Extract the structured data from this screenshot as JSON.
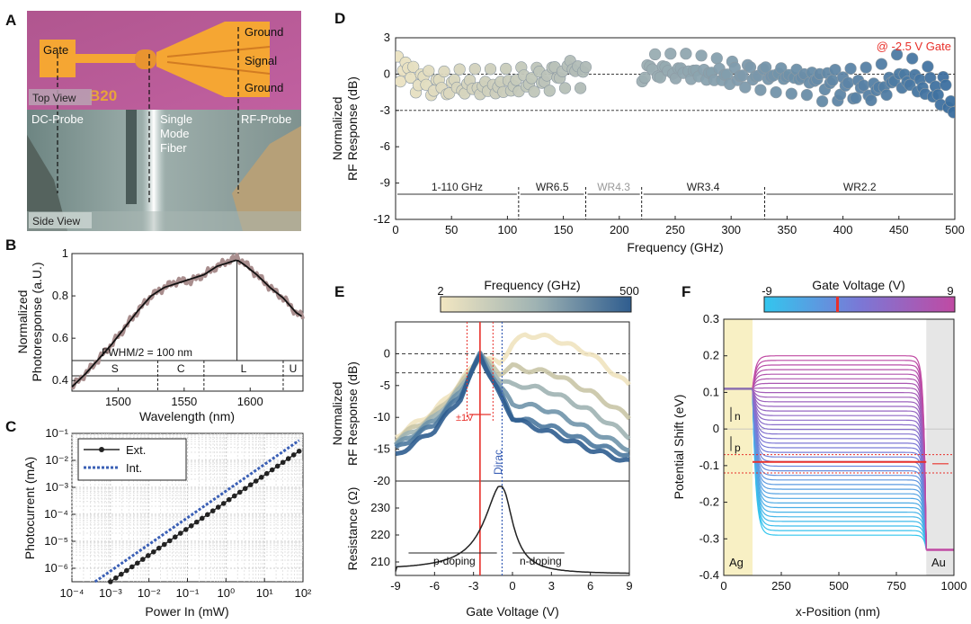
{
  "figure": {
    "panel_labels": [
      "A",
      "B",
      "C",
      "D",
      "E",
      "F"
    ],
    "photo": {
      "top_view_label": "Top View",
      "side_view_label": "Side View",
      "gate_label": "Gate",
      "ground_top_label": "Ground",
      "signal_label": "Signal",
      "ground_bottom_label": "Ground",
      "dc_probe_label": "DC-Probe",
      "fiber_label_1": "Single",
      "fiber_label_2": "Mode",
      "fiber_label_3": "Fiber",
      "rf_probe_label": "RF-Probe",
      "chip_marking": "B20"
    }
  },
  "chart_data": [
    {
      "id": "B",
      "type": "line",
      "xlabel": "Wavelength (nm)",
      "ylabel_1": "Normalized",
      "ylabel_2": "Photoresponse (a.U.)",
      "xlim": [
        1465,
        1640
      ],
      "ylim": [
        0.35,
        1.0
      ],
      "xticks": [
        1500,
        1550,
        1600
      ],
      "yticks": [
        0.4,
        0.6,
        0.8,
        1
      ],
      "series": [
        {
          "name": "measured",
          "color": "#a98e8e",
          "x": [
            1465,
            1475,
            1485,
            1495,
            1505,
            1515,
            1525,
            1535,
            1545,
            1555,
            1565,
            1575,
            1585,
            1590,
            1595,
            1605,
            1615,
            1625,
            1635,
            1640
          ],
          "y": [
            0.37,
            0.43,
            0.5,
            0.57,
            0.65,
            0.73,
            0.8,
            0.84,
            0.87,
            0.87,
            0.9,
            0.94,
            0.97,
            0.98,
            0.96,
            0.9,
            0.84,
            0.79,
            0.72,
            0.7
          ]
        },
        {
          "name": "fit",
          "color": "#111111",
          "x": [
            1465,
            1475,
            1485,
            1495,
            1505,
            1515,
            1525,
            1535,
            1545,
            1555,
            1565,
            1575,
            1585,
            1590,
            1595,
            1605,
            1615,
            1625,
            1635,
            1640
          ],
          "y": [
            0.37,
            0.43,
            0.5,
            0.57,
            0.65,
            0.73,
            0.8,
            0.84,
            0.86,
            0.88,
            0.9,
            0.94,
            0.96,
            0.97,
            0.95,
            0.9,
            0.84,
            0.79,
            0.72,
            0.7
          ]
        }
      ],
      "annotation": "FWHM/2 = 100 nm",
      "peak_wavelength": 1590,
      "bands": [
        {
          "name": "S",
          "start": 1465,
          "end": 1530
        },
        {
          "name": "C",
          "start": 1530,
          "end": 1565
        },
        {
          "name": "L",
          "start": 1565,
          "end": 1625
        },
        {
          "name": "U",
          "start": 1625,
          "end": 1640
        }
      ]
    },
    {
      "id": "C",
      "type": "line",
      "xlabel": "Power In (mW)",
      "ylabel": "Photocurrent (mA)",
      "xscale": "log",
      "yscale": "log",
      "xlim_exp": [
        -4,
        2
      ],
      "ylim_exp": [
        -6.5,
        -1
      ],
      "xtick_labels": [
        "10⁻⁴",
        "10⁻³",
        "10⁻²",
        "10⁻¹",
        "10⁰",
        "10¹",
        "10²"
      ],
      "ytick_labels": [
        "10⁻⁶",
        "10⁻⁵",
        "10⁻⁴",
        "10⁻³",
        "10⁻²",
        "10⁻¹"
      ],
      "legend": [
        "Ext.",
        "Int."
      ],
      "series": [
        {
          "name": "Ext.",
          "log_x": [
            -3.0,
            1.9
          ],
          "log_y": [
            -6.5,
            -1.66
          ],
          "markers": 36
        },
        {
          "name": "Int.",
          "log_x": [
            -3.4,
            1.9
          ],
          "log_y": [
            -6.5,
            -1.26
          ]
        }
      ]
    },
    {
      "id": "D",
      "type": "scatter",
      "xlabel": "Frequency (GHz)",
      "ylabel_1": "Normalized",
      "ylabel_2": "RF Response (dB)",
      "xlim": [
        0,
        500
      ],
      "ylim": [
        -12,
        3
      ],
      "xticks": [
        0,
        50,
        100,
        150,
        200,
        250,
        300,
        350,
        400,
        450,
        500
      ],
      "yticks": [
        3,
        0,
        -3,
        -6,
        -9,
        -12
      ],
      "reference_lines": [
        0,
        -3
      ],
      "annotation": "@ -2.5 V Gate",
      "annotation_color": "#e8302a",
      "bands": [
        {
          "name": "1-110 GHz",
          "start": 0,
          "end": 110,
          "color": "#222222"
        },
        {
          "name": "WR6.5",
          "start": 110,
          "end": 170,
          "color": "#222222"
        },
        {
          "name": "WR4.3",
          "start": 170,
          "end": 220,
          "color": "#999999"
        },
        {
          "name": "WR3.4",
          "start": 220,
          "end": 330,
          "color": "#222222"
        },
        {
          "name": "WR2.2",
          "start": 330,
          "end": 500,
          "color": "#222222"
        }
      ],
      "response_anchors": {
        "freq": [
          2,
          20,
          40,
          60,
          80,
          100,
          110,
          130,
          150,
          160,
          170,
          220,
          230,
          260,
          300,
          330,
          360,
          400,
          430,
          450,
          470,
          490,
          500
        ],
        "db": [
          0.8,
          -0.5,
          -0.9,
          -0.8,
          -0.9,
          -0.8,
          -0.6,
          -0.4,
          0.0,
          0.5,
          -0.2,
          0.3,
          0.5,
          0.4,
          0.0,
          -0.2,
          -0.4,
          -0.9,
          -1.1,
          0.0,
          -0.6,
          -1.5,
          -3.0
        ]
      },
      "gap_ghz": [
        170,
        220
      ],
      "colormap": [
        "#ece3c2",
        "#3a6e9f"
      ]
    },
    {
      "id": "E",
      "type": "line",
      "xlabel": "Gate Voltage (V)",
      "top": {
        "ylabel_1": "Normalized",
        "ylabel_2": "RF Response (dB)",
        "ylim": [
          -20,
          5
        ],
        "yticks": [
          0,
          -5,
          -10,
          -15,
          -20
        ],
        "reference_lines": [
          0,
          -3
        ],
        "series": [
          {
            "color": "#f0e3bf",
            "x": [
              -9,
              -6,
              -4,
              -2.5,
              -1,
              0,
              1,
              3,
              6,
              9
            ],
            "y": [
              -13,
              -9,
              -4.5,
              -0.5,
              -1.5,
              1.5,
              3.0,
              2.5,
              0,
              -5
            ]
          },
          {
            "color": "#c9c5a6",
            "x": [
              -9,
              -6,
              -4,
              -2.5,
              -1,
              0,
              1,
              3,
              6,
              9
            ],
            "y": [
              -13.5,
              -9.5,
              -5,
              -0.3,
              -3,
              -2,
              -2.5,
              -3,
              -6,
              -10
            ]
          },
          {
            "color": "#9fb3b3",
            "x": [
              -9,
              -6,
              -4,
              -2.5,
              -1,
              0,
              1,
              3,
              6,
              9
            ],
            "y": [
              -14,
              -10,
              -5.5,
              -0.2,
              -4,
              -5,
              -5,
              -6,
              -9,
              -13
            ]
          },
          {
            "color": "#6f93aa",
            "x": [
              -9,
              -6,
              -4,
              -2.5,
              -1,
              0,
              1,
              3,
              6,
              9
            ],
            "y": [
              -14.5,
              -10.5,
              -6,
              -0.2,
              -5,
              -8,
              -8,
              -9,
              -12,
              -15
            ]
          },
          {
            "color": "#4b789f",
            "x": [
              -9,
              -6,
              -4,
              -2.5,
              -1,
              0,
              1,
              3,
              6,
              9
            ],
            "y": [
              -15,
              -11,
              -6.5,
              -0.2,
              -6,
              -10,
              -10.5,
              -11.5,
              -14,
              -16
            ]
          },
          {
            "color": "#2f5d8f",
            "x": [
              -9,
              -6,
              -4,
              -2.5,
              -1,
              0,
              1,
              3,
              6,
              9
            ],
            "y": [
              -16,
              -12,
              -7,
              -0.2,
              -6.5,
              -10,
              -11,
              -12.5,
              -15,
              -17
            ]
          }
        ],
        "colorbar_title": "Frequency (GHz)",
        "colorbar_min": "2",
        "colorbar_max": "500",
        "operating_point_v": -2.5,
        "window_label": "±1V",
        "dirac_label": "Dirac",
        "dirac_v": -0.8
      },
      "bottom": {
        "ylabel": "Resistance (Ω)",
        "ylim": [
          205,
          240
        ],
        "yticks": [
          210,
          220,
          230
        ],
        "series": {
          "x": [
            -9,
            -6,
            -4,
            -2.5,
            -1.5,
            -0.8,
            0,
            1,
            3,
            6,
            9
          ],
          "y": [
            206.5,
            209,
            213,
            219,
            227,
            237.5,
            229,
            219,
            211,
            207,
            205.5
          ]
        },
        "p_label": "p-doping",
        "n_label": "n-doping"
      },
      "xlim": [
        -9,
        9
      ],
      "xticks": [
        -9,
        -6,
        -3,
        0,
        3,
        6,
        9
      ]
    },
    {
      "id": "F",
      "type": "line",
      "xlabel": "x-Position (nm)",
      "ylabel": "Potential Shift (eV)",
      "xlim": [
        0,
        1000
      ],
      "ylim": [
        -0.4,
        0.3
      ],
      "xticks": [
        0,
        250,
        500,
        750,
        1000
      ],
      "yticks": [
        0.3,
        0.2,
        0.1,
        0,
        -0.1,
        -0.2,
        -0.3,
        -0.4
      ],
      "colorbar_title": "Gate Voltage (V)",
      "colorbar_min": "-9",
      "colorbar_max": "9",
      "ag_label": "Ag",
      "au_label": "Au",
      "ag_region_nm": [
        0,
        125
      ],
      "au_region_nm": [
        880,
        1000
      ],
      "ag_level_ev": 0.11,
      "au_level_ev": -0.33,
      "plateau_min_ev": -0.29,
      "plateau_max_ev": 0.2,
      "curve_count": 40,
      "highlight_ev": -0.09,
      "band_ev": [
        -0.07,
        -0.12
      ],
      "n_label": "n",
      "p_label": "p"
    }
  ]
}
